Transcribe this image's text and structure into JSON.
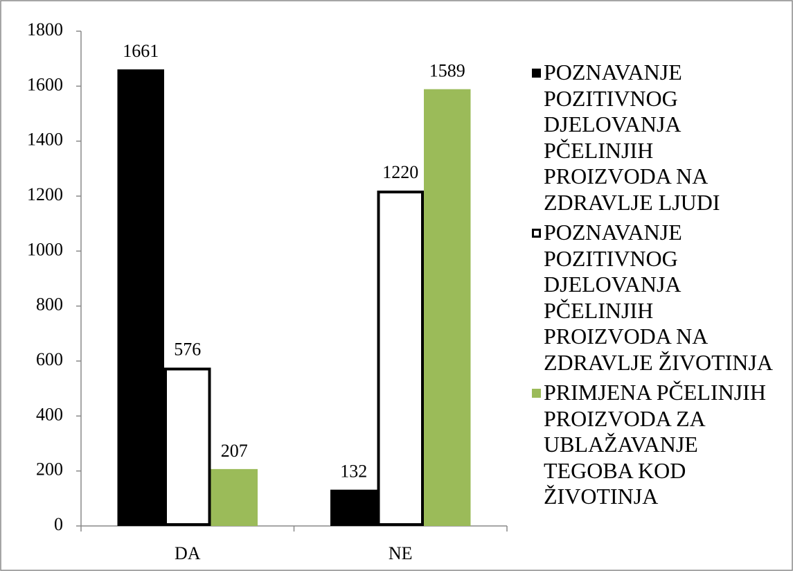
{
  "chart_data": {
    "type": "bar",
    "categories": [
      "DA",
      "NE"
    ],
    "series": [
      {
        "name": "POZNAVANJE POZITIVNOG DJELOVANJA PČELINJIH PROIZVODA NA ZDRAVLJE LJUDI",
        "color": "#000000",
        "values": [
          1661,
          132
        ]
      },
      {
        "name": "POZNAVANJE POZITIVNOG DJELOVANJA PČELINJIH PROIZVODA NA ZDRAVLJE ŽIVOTINJA",
        "color": "#ffffff",
        "edgecolor": "#000000",
        "values": [
          576,
          1220
        ]
      },
      {
        "name": "PRIMJENA PČELINJIH PROIZVODA ZA UBLAŽAVANJE TEGOBA KOD ŽIVOTINJA",
        "color": "#9bbb59",
        "values": [
          207,
          1589
        ]
      }
    ],
    "ylim": [
      0,
      1800
    ],
    "yticks": [
      0,
      200,
      400,
      600,
      800,
      1000,
      1200,
      1400,
      1600,
      1800
    ],
    "grid": false,
    "legend": "right"
  }
}
